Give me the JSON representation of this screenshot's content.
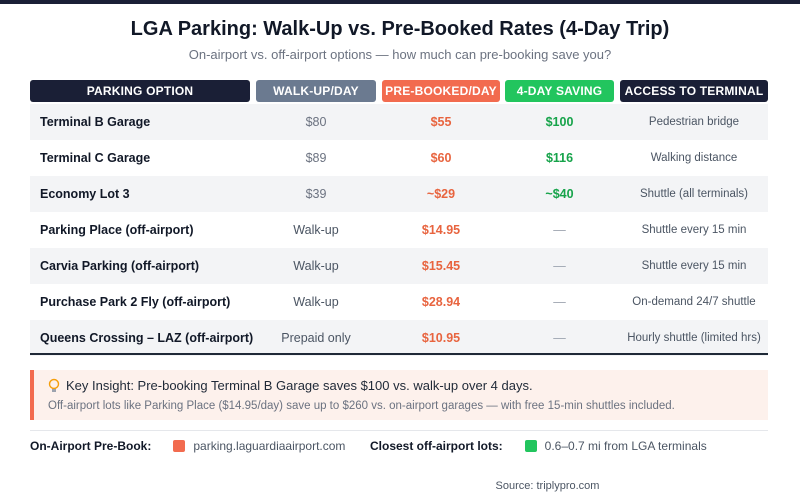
{
  "header": {
    "title": "LGA Parking: Walk-Up vs. Pre-Booked Rates (4-Day Trip)",
    "subtitle": "On-airport vs. off-airport options — how much can pre-booking save you?"
  },
  "table": {
    "columns": [
      "PARKING OPTION",
      "WALK-UP/DAY",
      "PRE-BOOKED/DAY",
      "4-DAY SAVING",
      "ACCESS TO TERMINAL"
    ],
    "rows": [
      [
        "Terminal B Garage",
        "$80",
        "$55",
        "$100",
        "Pedestrian bridge"
      ],
      [
        "Terminal C Garage",
        "$89",
        "$60",
        "$116",
        "Walking distance"
      ],
      [
        "Economy Lot 3",
        "$39",
        "~$29",
        "~$40",
        "Shuttle (all terminals)"
      ],
      [
        "Parking Place (off-airport)",
        "Walk-up",
        "$14.95",
        "—",
        "Shuttle every 15 min"
      ],
      [
        "Carvia Parking (off-airport)",
        "Walk-up",
        "$15.45",
        "—",
        "Shuttle every 15 min"
      ],
      [
        "Purchase Park 2 Fly (off-airport)",
        "Walk-up",
        "$28.94",
        "—",
        "On-demand 24/7 shuttle"
      ],
      [
        "Queens Crossing – LAZ (off-airport)",
        "Prepaid only",
        "$10.95",
        "—",
        "Hourly shuttle (limited hrs)"
      ]
    ]
  },
  "insight": {
    "headline": "Key Insight: Pre-booking Terminal B Garage saves $100 vs. walk-up over 4 days.",
    "detail": "Off-airport lots like Parking Place ($14.95/day) save up to $260 vs. on-airport garages — with free 15-min shuttles included."
  },
  "legend": [
    {
      "label": "On-Airport Pre-Book:",
      "text": "parking.laguardiaairport.com",
      "color": "#f26b4f"
    },
    {
      "label": "Closest off-airport lots:",
      "text": "0.6–0.7 mi from LGA terminals",
      "color": "#22c55e"
    }
  ],
  "source": "Source: triplypro.com"
}
